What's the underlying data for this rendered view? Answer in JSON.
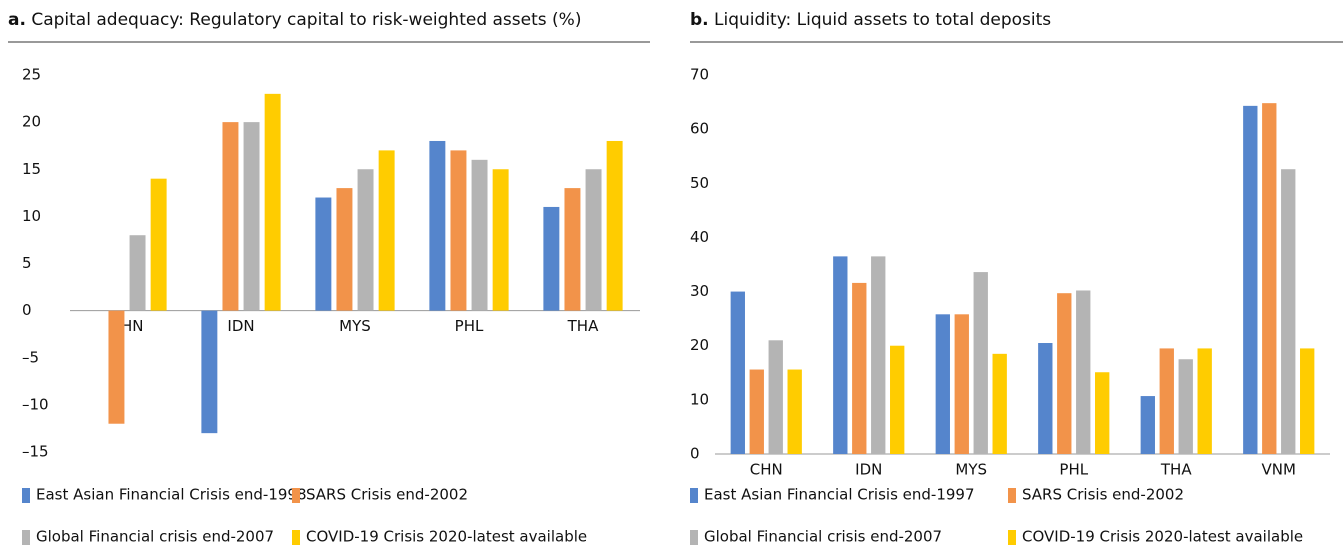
{
  "chart_data": [
    {
      "type": "bar",
      "panel": "a.",
      "title": "Capital adequacy: Regulatory capital to risk-weighted assets (%)",
      "categories": [
        "CHN",
        "IDN",
        "MYS",
        "PHL",
        "THA"
      ],
      "series": [
        {
          "name": "East Asian Financial Crisis end-1998",
          "color": "#5585cc",
          "values": [
            null,
            -13,
            12,
            18,
            11
          ]
        },
        {
          "name": "SARS Crisis end-2002",
          "color": "#f2934a",
          "values": [
            -12,
            20,
            13,
            17,
            13
          ]
        },
        {
          "name": "Global Financial crisis end-2007",
          "color": "#b4b4b4",
          "values": [
            8,
            20,
            15,
            16,
            15
          ]
        },
        {
          "name": "COVID-19 Crisis 2020-latest available",
          "color": "#ffcc00",
          "values": [
            14,
            23,
            17,
            15,
            18
          ]
        }
      ],
      "ylim": [
        -15,
        25
      ],
      "yticks": [
        {
          "value": -15,
          "label": "–15"
        },
        {
          "value": -10,
          "label": "–10"
        },
        {
          "value": -5,
          "label": "–5"
        },
        0,
        5,
        10,
        15,
        20,
        25
      ],
      "grid": false
    },
    {
      "type": "bar",
      "panel": "b.",
      "title": "Liquidity: Liquid assets to total deposits",
      "categories": [
        "CHN",
        "IDN",
        "MYS",
        "PHL",
        "THA",
        "VNM"
      ],
      "series": [
        {
          "name": "East Asian Financial Crisis end-1997",
          "color": "#5585cc",
          "values": [
            30,
            36.5,
            25.8,
            20.5,
            10.7,
            64.3
          ]
        },
        {
          "name": "SARS Crisis end-2002",
          "color": "#f2934a",
          "values": [
            15.6,
            31.6,
            25.8,
            29.7,
            19.5,
            64.8
          ]
        },
        {
          "name": "Global Financial crisis end-2007",
          "color": "#b4b4b4",
          "values": [
            21,
            36.5,
            33.6,
            30.2,
            17.5,
            52.6
          ]
        },
        {
          "name": "COVID-19 Crisis 2020-latest available",
          "color": "#ffcc00",
          "values": [
            15.6,
            20,
            18.5,
            15.1,
            19.5,
            19.5
          ]
        }
      ],
      "ylim": [
        0,
        70
      ],
      "yticks": [
        0,
        10,
        20,
        30,
        40,
        50,
        60,
        70
      ],
      "grid": false
    }
  ]
}
